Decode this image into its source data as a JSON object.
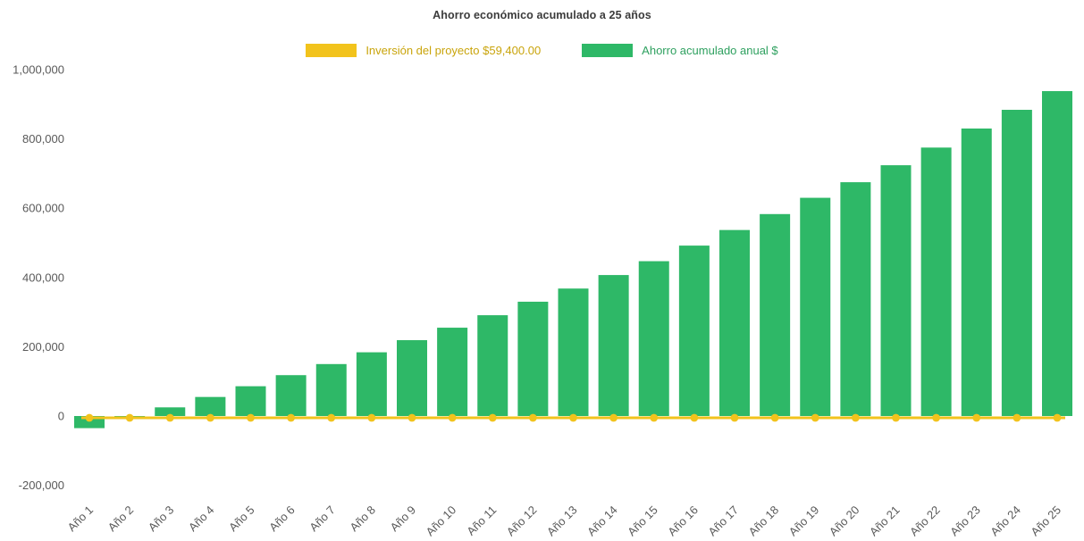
{
  "page": {
    "background": "#ffffff"
  },
  "chart_data": {
    "type": "bar",
    "title": "Ahorro económico acumulado a 25 años",
    "xlabel": "",
    "ylabel": "",
    "grid": false,
    "legend_position": "top",
    "ylim": [
      -200000,
      1000000
    ],
    "yticks": [
      -200000,
      0,
      200000,
      400000,
      600000,
      800000,
      1000000
    ],
    "categories": [
      "Año 1",
      "Año 2",
      "Año 3",
      "Año 4",
      "Año 5",
      "Año 6",
      "Año 7",
      "Año 8",
      "Año 9",
      "Año 10",
      "Año 11",
      "Año 12",
      "Año 13",
      "Año 14",
      "Año 15",
      "Año 16",
      "Año 17",
      "Año 18",
      "Año 19",
      "Año 20",
      "Año 21",
      "Año 22",
      "Año 23",
      "Año 24",
      "Año 25"
    ],
    "series": [
      {
        "name": "Inversión del proyecto $59,400.00",
        "type": "line",
        "color": "#F2C31C",
        "label_color": "#C9A40B",
        "values": [
          0,
          0,
          0,
          0,
          0,
          0,
          0,
          0,
          0,
          0,
          0,
          0,
          0,
          0,
          0,
          0,
          0,
          0,
          0,
          0,
          0,
          0,
          0,
          0,
          0
        ]
      },
      {
        "name": "Ahorro acumulado anual $",
        "type": "bar",
        "color": "#2EB867",
        "label_color": "#2EA05F",
        "values": [
          -35000,
          -2000,
          25000,
          55000,
          86000,
          118000,
          150000,
          184000,
          219000,
          255000,
          291000,
          330000,
          368000,
          407000,
          447000,
          492000,
          537000,
          583000,
          630000,
          675000,
          724000,
          775000,
          830000,
          884000,
          938000
        ]
      }
    ]
  }
}
